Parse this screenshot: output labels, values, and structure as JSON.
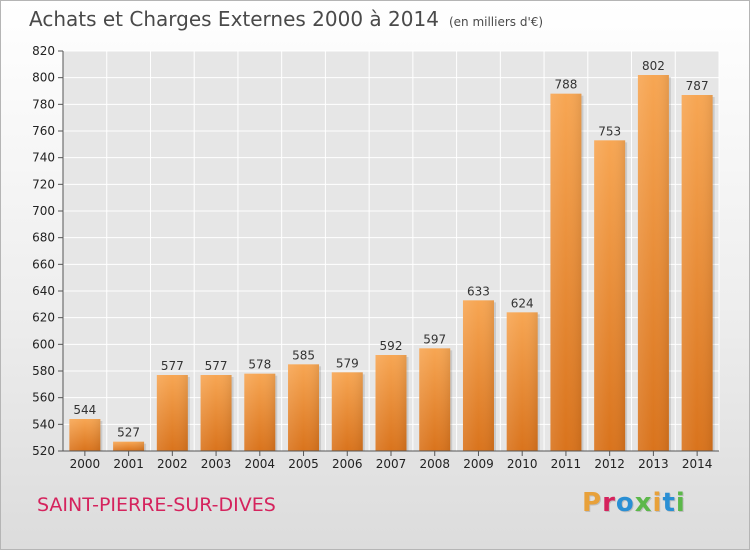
{
  "header": {
    "title": "Achats et Charges Externes 2000 à 2014",
    "subtitle": "(en milliers d'€)"
  },
  "footer": {
    "commune": "SAINT-PIERRE-SUR-DIVES",
    "logo": "Proxiti",
    "logo_colors": [
      "#e8a13a",
      "#d5235d",
      "#2a8fd4",
      "#5cb84a",
      "#e8a13a",
      "#2a8fd4",
      "#5cb84a"
    ]
  },
  "chart_data": {
    "type": "bar",
    "categories": [
      "2000",
      "2001",
      "2002",
      "2003",
      "2004",
      "2005",
      "2006",
      "2007",
      "2008",
      "2009",
      "2010",
      "2011",
      "2012",
      "2013",
      "2014"
    ],
    "values": [
      544,
      527,
      577,
      577,
      578,
      585,
      579,
      592,
      597,
      633,
      624,
      788,
      753,
      802,
      787
    ],
    "ylim": [
      520,
      820
    ],
    "yticks": [
      520,
      540,
      560,
      580,
      600,
      620,
      640,
      660,
      680,
      700,
      720,
      740,
      760,
      780,
      800,
      820
    ],
    "grid": true,
    "bar_color": "#f0913a"
  }
}
